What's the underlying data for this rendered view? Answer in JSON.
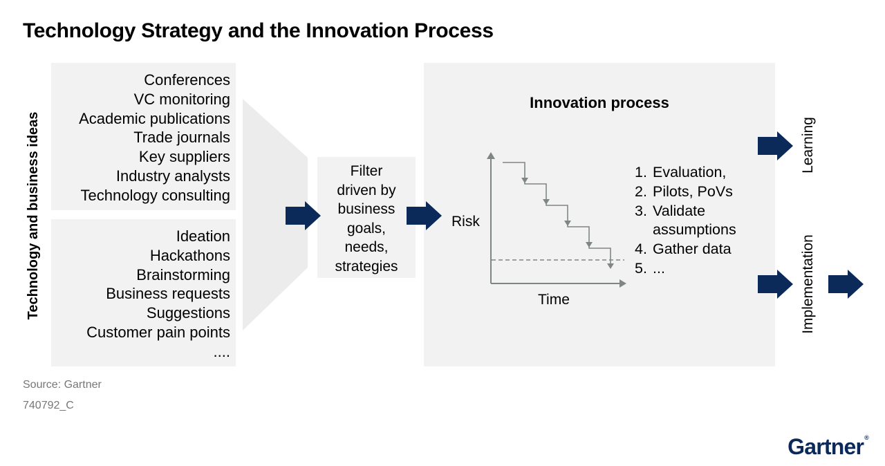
{
  "title": "Technology Strategy and the Innovation Process",
  "side_label": "Technology and business ideas",
  "external_sources": [
    "Conferences",
    "VC monitoring",
    "Academic publications",
    "Trade journals",
    "Key suppliers",
    "Industry analysts",
    "Technology consulting"
  ],
  "internal_sources": [
    "Ideation",
    "Hackathons",
    "Brainstorming",
    "Business requests",
    "Suggestions",
    "Customer pain points",
    "...."
  ],
  "filter_lines": [
    "Filter",
    "driven by",
    "business",
    "goals,",
    "needs,",
    "strategies"
  ],
  "innovation": {
    "title": "Innovation process",
    "y_label": "Risk",
    "x_label": "Time",
    "steps": [
      {
        "num": "1.",
        "text": "Evaluation,"
      },
      {
        "num": "2.",
        "text": "Pilots, PoVs"
      },
      {
        "num": "3.",
        "text": "Validate"
      },
      {
        "num": "",
        "text": "assumptions"
      },
      {
        "num": "4.",
        "text": "Gather data"
      },
      {
        "num": "5.",
        "text": "..."
      }
    ]
  },
  "outputs": {
    "learning": "Learning",
    "implementation": "Implementation"
  },
  "source": "Source: Gartner",
  "figure_id": "740792_C",
  "logo": "Gartner",
  "colors": {
    "panel": "#f2f2f2",
    "arrow": "#0b2a5a",
    "chart_line": "#7f8684",
    "funnel": "#ececec"
  }
}
